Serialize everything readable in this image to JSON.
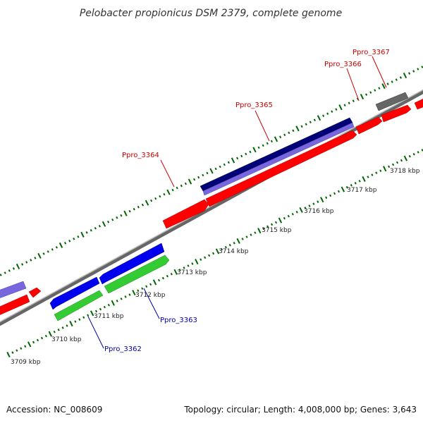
{
  "title": "Pelobacter propionicus DSM 2379, complete genome",
  "footer": {
    "accession": "Accession: NC_008609",
    "summary": "Topology: circular; Length: 4,008,000 bp; Genes: 3,643"
  },
  "scale_labels": [
    "3709 kbp",
    "3710 kbp",
    "3711 kbp",
    "3712 kbp",
    "3713 kbp",
    "3714 kbp",
    "3715 kbp",
    "3716 kbp",
    "3717 kbp",
    "3718 kbp"
  ],
  "gene_labels": {
    "ppro_3362": "Ppro_3362",
    "ppro_3363": "Ppro_3363",
    "ppro_3364": "Ppro_3364",
    "ppro_3365": "Ppro_3365",
    "ppro_3366": "Ppro_3366",
    "ppro_3367": "Ppro_3367"
  },
  "colors": {
    "forward_red": "#ff0000",
    "reverse_blue": "#0000ee",
    "green": "#33cc33",
    "lavender": "#7766dd",
    "navy": "#000077",
    "gray": "#666666",
    "tick_green": "#006600",
    "label_red": "#cc0000",
    "label_blue": "#0000aa"
  }
}
